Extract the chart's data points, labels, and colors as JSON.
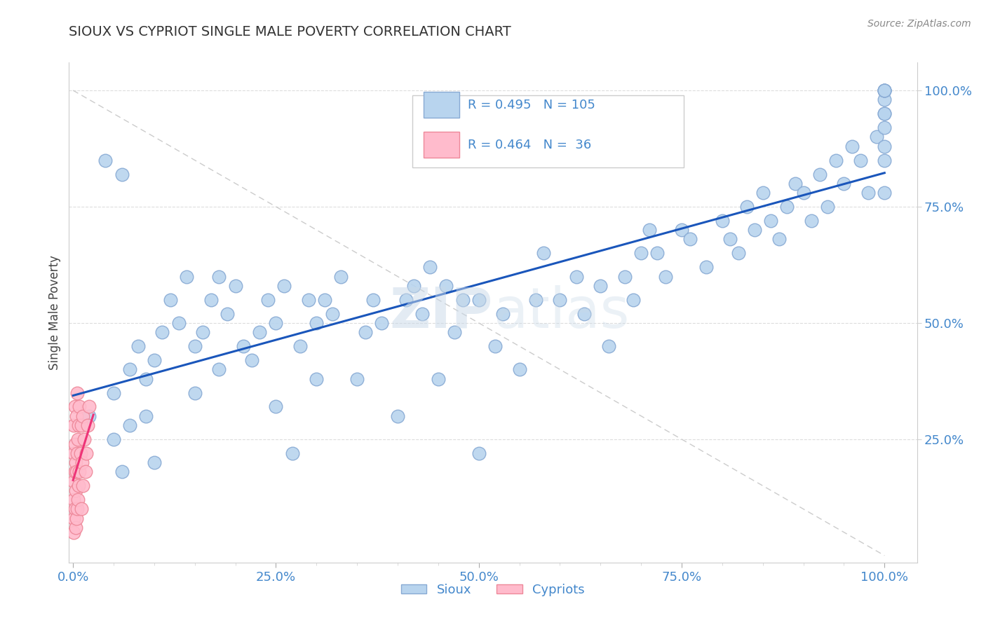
{
  "title": "SIOUX VS CYPRIOT SINGLE MALE POVERTY CORRELATION CHART",
  "source_text": "Source: ZipAtlas.com",
  "ylabel": "Single Male Poverty",
  "watermark": "ZIPatlas",
  "sioux_color": "#b8d4ee",
  "sioux_edge": "#88aad4",
  "cypriot_color": "#ffbbcc",
  "cypriot_edge": "#ee8899",
  "sioux_line_color": "#1a56bb",
  "cypriot_line_color": "#ee3377",
  "diag_line_color": "#cccccc",
  "tick_color": "#4488cc",
  "sioux_R": 0.495,
  "cypriot_R": 0.464,
  "sioux_N": 105,
  "cypriot_N": 36,
  "x_ticks": [
    0.0,
    0.25,
    0.5,
    0.75,
    1.0
  ],
  "x_tick_labels": [
    "0.0%",
    "25.0%",
    "50.0%",
    "75.0%",
    "100.0%"
  ],
  "y_ticks_right": [
    0.25,
    0.5,
    0.75,
    1.0
  ],
  "y_tick_labels_right": [
    "25.0%",
    "50.0%",
    "75.0%",
    "100.0%"
  ],
  "sioux_x": [
    0.02,
    0.04,
    0.05,
    0.05,
    0.06,
    0.06,
    0.07,
    0.07,
    0.08,
    0.09,
    0.09,
    0.1,
    0.1,
    0.11,
    0.12,
    0.13,
    0.14,
    0.15,
    0.15,
    0.16,
    0.17,
    0.18,
    0.18,
    0.19,
    0.2,
    0.21,
    0.22,
    0.23,
    0.24,
    0.25,
    0.25,
    0.26,
    0.27,
    0.28,
    0.29,
    0.3,
    0.3,
    0.31,
    0.32,
    0.33,
    0.35,
    0.36,
    0.37,
    0.38,
    0.4,
    0.41,
    0.42,
    0.43,
    0.44,
    0.45,
    0.46,
    0.47,
    0.48,
    0.5,
    0.5,
    0.52,
    0.53,
    0.55,
    0.57,
    0.58,
    0.6,
    0.62,
    0.63,
    0.65,
    0.66,
    0.68,
    0.69,
    0.7,
    0.71,
    0.72,
    0.73,
    0.75,
    0.76,
    0.78,
    0.8,
    0.81,
    0.82,
    0.83,
    0.84,
    0.85,
    0.86,
    0.87,
    0.88,
    0.89,
    0.9,
    0.91,
    0.92,
    0.93,
    0.94,
    0.95,
    0.96,
    0.97,
    0.98,
    0.99,
    1.0,
    1.0,
    1.0,
    1.0,
    1.0,
    1.0,
    1.0,
    1.0,
    1.0,
    1.0,
    1.0
  ],
  "sioux_y": [
    0.3,
    0.85,
    0.25,
    0.35,
    0.82,
    0.18,
    0.4,
    0.28,
    0.45,
    0.38,
    0.3,
    0.42,
    0.2,
    0.48,
    0.55,
    0.5,
    0.6,
    0.35,
    0.45,
    0.48,
    0.55,
    0.6,
    0.4,
    0.52,
    0.58,
    0.45,
    0.42,
    0.48,
    0.55,
    0.5,
    0.32,
    0.58,
    0.22,
    0.45,
    0.55,
    0.5,
    0.38,
    0.55,
    0.52,
    0.6,
    0.38,
    0.48,
    0.55,
    0.5,
    0.3,
    0.55,
    0.58,
    0.52,
    0.62,
    0.38,
    0.58,
    0.48,
    0.55,
    0.22,
    0.55,
    0.45,
    0.52,
    0.4,
    0.55,
    0.65,
    0.55,
    0.6,
    0.52,
    0.58,
    0.45,
    0.6,
    0.55,
    0.65,
    0.7,
    0.65,
    0.6,
    0.7,
    0.68,
    0.62,
    0.72,
    0.68,
    0.65,
    0.75,
    0.7,
    0.78,
    0.72,
    0.68,
    0.75,
    0.8,
    0.78,
    0.72,
    0.82,
    0.75,
    0.85,
    0.8,
    0.88,
    0.85,
    0.78,
    0.9,
    0.98,
    1.0,
    1.0,
    0.95,
    1.0,
    0.85,
    0.92,
    0.78,
    1.0,
    0.88,
    0.95
  ],
  "cypriot_x": [
    0.001,
    0.001,
    0.001,
    0.001,
    0.001,
    0.001,
    0.002,
    0.002,
    0.002,
    0.002,
    0.003,
    0.003,
    0.003,
    0.004,
    0.004,
    0.004,
    0.005,
    0.005,
    0.005,
    0.006,
    0.006,
    0.007,
    0.007,
    0.008,
    0.008,
    0.009,
    0.01,
    0.01,
    0.011,
    0.012,
    0.012,
    0.014,
    0.015,
    0.016,
    0.018,
    0.02
  ],
  "cypriot_y": [
    0.05,
    0.08,
    0.12,
    0.16,
    0.22,
    0.28,
    0.1,
    0.18,
    0.24,
    0.32,
    0.06,
    0.14,
    0.2,
    0.08,
    0.18,
    0.3,
    0.1,
    0.22,
    0.35,
    0.12,
    0.25,
    0.15,
    0.28,
    0.18,
    0.32,
    0.22,
    0.1,
    0.28,
    0.2,
    0.15,
    0.3,
    0.25,
    0.18,
    0.22,
    0.28,
    0.32
  ]
}
